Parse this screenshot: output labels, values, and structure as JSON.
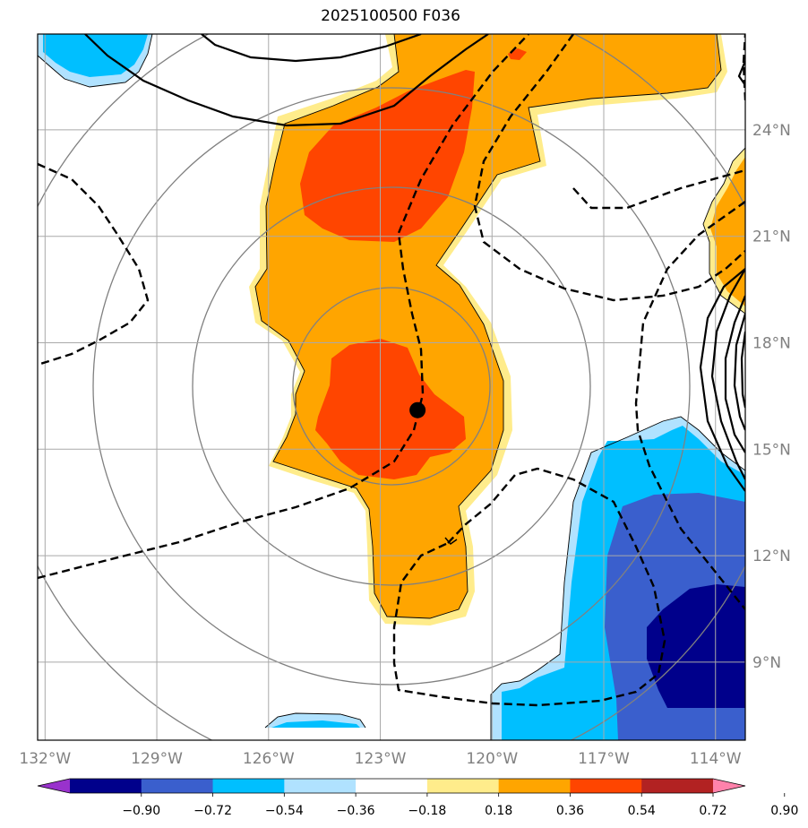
{
  "title": "2025100500 F036",
  "map": {
    "lon_range": [
      -132.2,
      -113.2
    ],
    "lat_range": [
      6.8,
      26.7
    ],
    "lon_ticks": [
      -132,
      -129,
      -126,
      -123,
      -120,
      -117,
      -114
    ],
    "lat_ticks": [
      9,
      12,
      15,
      18,
      21,
      24
    ],
    "lon_labels": [
      "132°W",
      "129°W",
      "126°W",
      "123°W",
      "120°W",
      "117°W",
      "114°W"
    ],
    "lat_labels": [
      "9°N",
      "12°N",
      "15°N",
      "18°N",
      "21°N",
      "24°N"
    ],
    "center_marker": {
      "lon": -122.0,
      "lat": 16.1
    },
    "range_rings_deg": [
      2.8,
      5.6,
      8.4,
      11.2
    ]
  },
  "colorbar": {
    "levels": [
      "−0.90",
      "−0.72",
      "−0.54",
      "−0.36",
      "−0.18",
      "0.18",
      "0.36",
      "0.54",
      "0.72",
      "0.90"
    ],
    "colors": [
      "#9932cc",
      "#00008b",
      "#3a5fcd",
      "#00bfff",
      "#b0e2ff",
      "#ffffff",
      "#ffec8b",
      "#ffa500",
      "#ff4500",
      "#b22222",
      "#ff82ab"
    ]
  }
}
